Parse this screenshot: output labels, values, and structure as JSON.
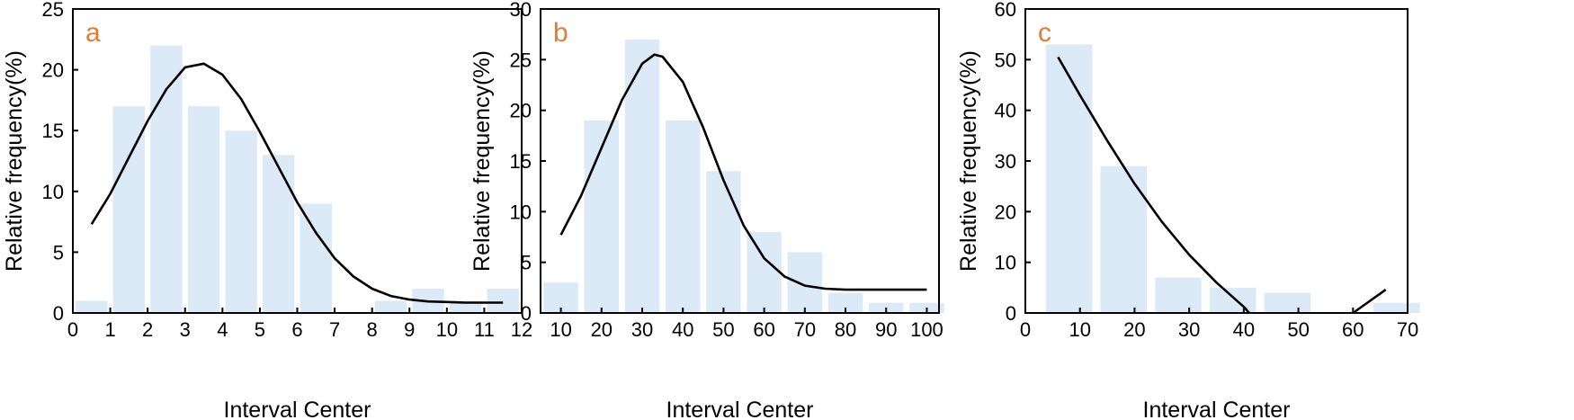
{
  "colors": {
    "bar": "#dbeaf6",
    "curve": "#000000",
    "panel_label": "#e07b39"
  },
  "chart_data": [
    {
      "type": "bar",
      "panel_label": "a",
      "xlabel": "Interval Center",
      "ylabel": "Relative frequency(%)",
      "xlim": [
        0,
        12
      ],
      "ylim": [
        0,
        25
      ],
      "x_ticks": [
        0,
        1,
        2,
        3,
        4,
        5,
        6,
        7,
        8,
        9,
        10,
        11,
        12
      ],
      "y_ticks": [
        0,
        5,
        10,
        15,
        20,
        25
      ],
      "bar_width": 0.85,
      "bars": [
        {
          "x": 0.5,
          "value": 1
        },
        {
          "x": 1.5,
          "value": 17
        },
        {
          "x": 2.5,
          "value": 22
        },
        {
          "x": 3.5,
          "value": 17
        },
        {
          "x": 4.5,
          "value": 15
        },
        {
          "x": 5.5,
          "value": 13
        },
        {
          "x": 6.5,
          "value": 9
        },
        {
          "x": 7.5,
          "value": 0
        },
        {
          "x": 8.5,
          "value": 1
        },
        {
          "x": 9.5,
          "value": 2
        },
        {
          "x": 10.5,
          "value": 1
        },
        {
          "x": 11.5,
          "value": 2
        }
      ],
      "fit_curve": {
        "x": [
          0.5,
          1,
          1.5,
          2,
          2.5,
          3,
          3.5,
          4,
          4.5,
          5,
          5.5,
          6,
          6.5,
          7,
          7.5,
          8,
          8.5,
          9,
          9.5,
          10,
          10.5,
          11,
          11.5
        ],
        "y": [
          7.3,
          9.8,
          12.8,
          15.8,
          18.4,
          20.2,
          20.5,
          19.6,
          17.6,
          14.9,
          12.0,
          9.1,
          6.6,
          4.5,
          3.0,
          2.0,
          1.4,
          1.1,
          0.95,
          0.9,
          0.85,
          0.85,
          0.85
        ]
      }
    },
    {
      "type": "bar",
      "panel_label": "b",
      "xlabel": "Interval Center",
      "ylabel": "Relative frequency(%)",
      "xlim": [
        5,
        103
      ],
      "ylim": [
        0,
        30
      ],
      "x_ticks": [
        10,
        20,
        30,
        40,
        50,
        60,
        70,
        80,
        90,
        100
      ],
      "y_ticks": [
        0,
        5,
        10,
        15,
        20,
        25,
        30
      ],
      "bar_width": 8.5,
      "bars": [
        {
          "x": 10,
          "value": 3
        },
        {
          "x": 20,
          "value": 19
        },
        {
          "x": 30,
          "value": 27
        },
        {
          "x": 40,
          "value": 19
        },
        {
          "x": 50,
          "value": 14
        },
        {
          "x": 60,
          "value": 8
        },
        {
          "x": 70,
          "value": 6
        },
        {
          "x": 80,
          "value": 2
        },
        {
          "x": 90,
          "value": 1
        },
        {
          "x": 100,
          "value": 1
        }
      ],
      "fit_curve": {
        "x": [
          10,
          15,
          20,
          25,
          30,
          33,
          35,
          40,
          45,
          50,
          55,
          60,
          65,
          70,
          75,
          80,
          85,
          90,
          95,
          100
        ],
        "y": [
          7.7,
          11.6,
          16.3,
          21.0,
          24.6,
          25.5,
          25.3,
          22.8,
          18.3,
          13.1,
          8.6,
          5.4,
          3.6,
          2.7,
          2.4,
          2.3,
          2.3,
          2.3,
          2.3,
          2.3
        ]
      }
    },
    {
      "type": "bar",
      "panel_label": "c",
      "xlabel": "Interval Center",
      "ylabel": "Relative frequency(%)",
      "xlim": [
        0,
        70
      ],
      "ylim": [
        0,
        60
      ],
      "x_ticks": [
        0,
        10,
        20,
        30,
        40,
        50,
        60,
        70
      ],
      "y_ticks": [
        0,
        10,
        20,
        30,
        40,
        50,
        60
      ],
      "bar_width": 8.5,
      "bars": [
        {
          "x": 8,
          "value": 53
        },
        {
          "x": 18,
          "value": 29
        },
        {
          "x": 28,
          "value": 7
        },
        {
          "x": 38,
          "value": 5
        },
        {
          "x": 48,
          "value": 4
        },
        {
          "x": 58,
          "value": 0
        },
        {
          "x": 68,
          "value": 2
        }
      ],
      "fit_curve": {
        "x": [
          6,
          10,
          15,
          20,
          25,
          30,
          35,
          40,
          41
        ],
        "y": [
          50.5,
          43,
          34,
          25.5,
          18,
          11.5,
          6,
          1.2,
          0
        ]
      },
      "fit_curve_2": {
        "x": [
          60,
          63,
          66
        ],
        "y": [
          0,
          2.3,
          4.6
        ]
      }
    }
  ]
}
